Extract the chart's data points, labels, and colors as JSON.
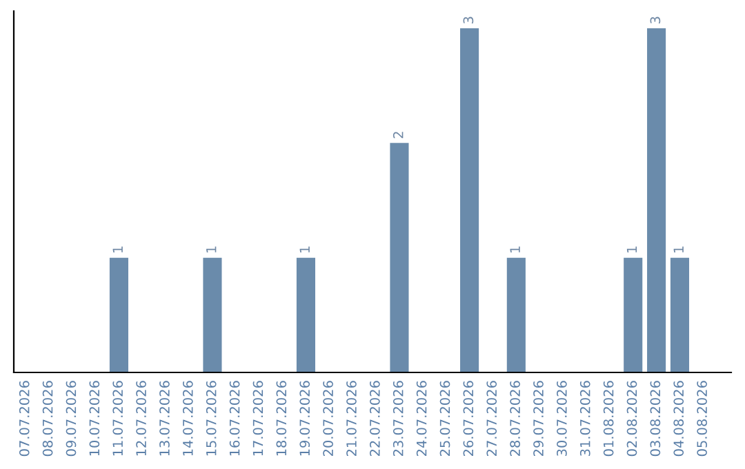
{
  "chart_data": {
    "type": "bar",
    "categories": [
      "07.07.2026",
      "08.07.2026",
      "09.07.2026",
      "10.07.2026",
      "11.07.2026",
      "12.07.2026",
      "13.07.2026",
      "14.07.2026",
      "15.07.2026",
      "16.07.2026",
      "17.07.2026",
      "18.07.2026",
      "19.07.2026",
      "20.07.2026",
      "21.07.2026",
      "22.07.2026",
      "23.07.2026",
      "24.07.2026",
      "25.07.2026",
      "26.07.2026",
      "27.07.2026",
      "28.07.2026",
      "29.07.2026",
      "30.07.2026",
      "31.07.2026",
      "01.08.2026",
      "02.08.2026",
      "03.08.2026",
      "04.08.2026",
      "05.08.2026"
    ],
    "values": [
      0,
      0,
      0,
      0,
      1,
      0,
      0,
      0,
      1,
      0,
      0,
      0,
      1,
      0,
      0,
      0,
      2,
      0,
      0,
      3,
      0,
      1,
      0,
      0,
      0,
      0,
      1,
      3,
      1,
      0
    ],
    "value_labels": [
      null,
      null,
      null,
      null,
      "1",
      null,
      null,
      null,
      "1",
      null,
      null,
      null,
      "1",
      null,
      null,
      null,
      "2",
      null,
      null,
      "3",
      null,
      "1",
      null,
      null,
      null,
      null,
      "1",
      "3",
      "1",
      null
    ],
    "color": "#6a8bab",
    "grid": false,
    "legend": false
  }
}
